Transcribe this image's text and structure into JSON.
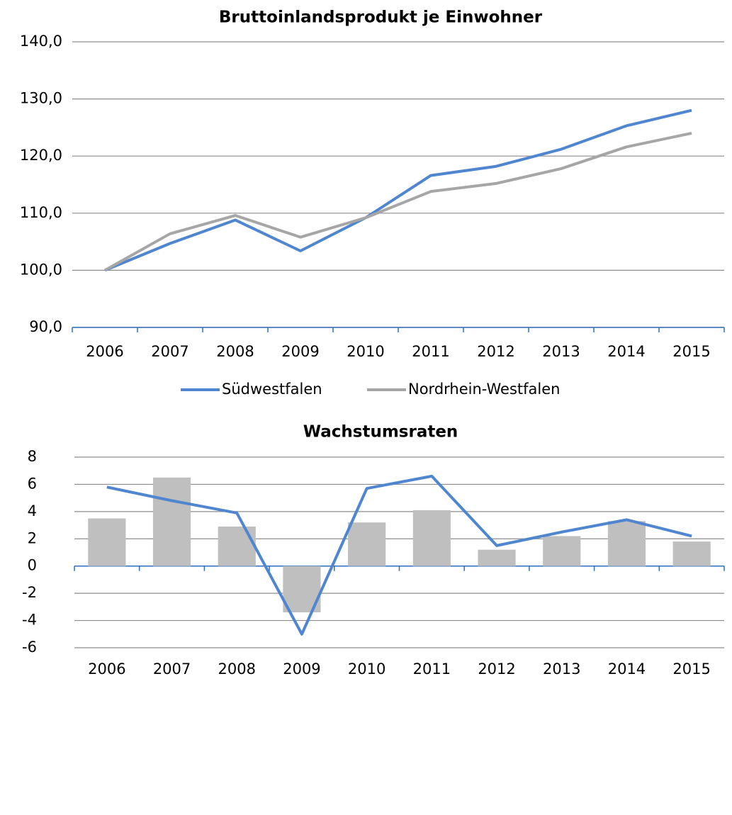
{
  "chart_data": [
    {
      "type": "line",
      "title": "Bruttoinlandsprodukt je Einwohner",
      "categories": [
        "2006",
        "2007",
        "2008",
        "2009",
        "2010",
        "2011",
        "2012",
        "2013",
        "2014",
        "2015"
      ],
      "series": [
        {
          "name": "Südwestfalen",
          "color": "#4f86cf",
          "values": [
            100,
            104.7,
            108.8,
            103.4,
            109.2,
            116.6,
            118.2,
            121.2,
            125.3,
            128.0
          ]
        },
        {
          "name": "Nordrhein-Westfalen",
          "color": "#a6a6a6",
          "values": [
            100,
            106.4,
            109.6,
            105.8,
            109.2,
            113.8,
            115.2,
            117.8,
            121.6,
            124.0
          ]
        }
      ],
      "ylim": [
        90,
        140
      ],
      "yticks": [
        {
          "value": 90,
          "label": "90,0"
        },
        {
          "value": 100,
          "label": "100,0"
        },
        {
          "value": 110,
          "label": "110,0"
        },
        {
          "value": 120,
          "label": "120,0"
        },
        {
          "value": 130,
          "label": "130,0"
        },
        {
          "value": 140,
          "label": "140,0"
        }
      ],
      "grid": true,
      "legend": "bottom"
    },
    {
      "type": "combo",
      "title": "Wachstumsraten",
      "categories": [
        "2006",
        "2007",
        "2008",
        "2009",
        "2010",
        "2011",
        "2012",
        "2013",
        "2014",
        "2015"
      ],
      "series": [
        {
          "type": "bar",
          "color": "#bfbfbf",
          "values": [
            3.5,
            6.5,
            2.9,
            -3.4,
            3.2,
            4.1,
            1.2,
            2.2,
            3.3,
            1.8
          ]
        },
        {
          "type": "line",
          "color": "#4f86cf",
          "values": [
            5.8,
            4.8,
            3.9,
            -5.0,
            5.7,
            6.6,
            1.5,
            2.5,
            3.4,
            2.2
          ]
        }
      ],
      "ylim": [
        -6,
        8
      ],
      "yticks": [
        -6,
        -4,
        -2,
        0,
        2,
        4,
        6,
        8
      ],
      "grid": true
    }
  ]
}
